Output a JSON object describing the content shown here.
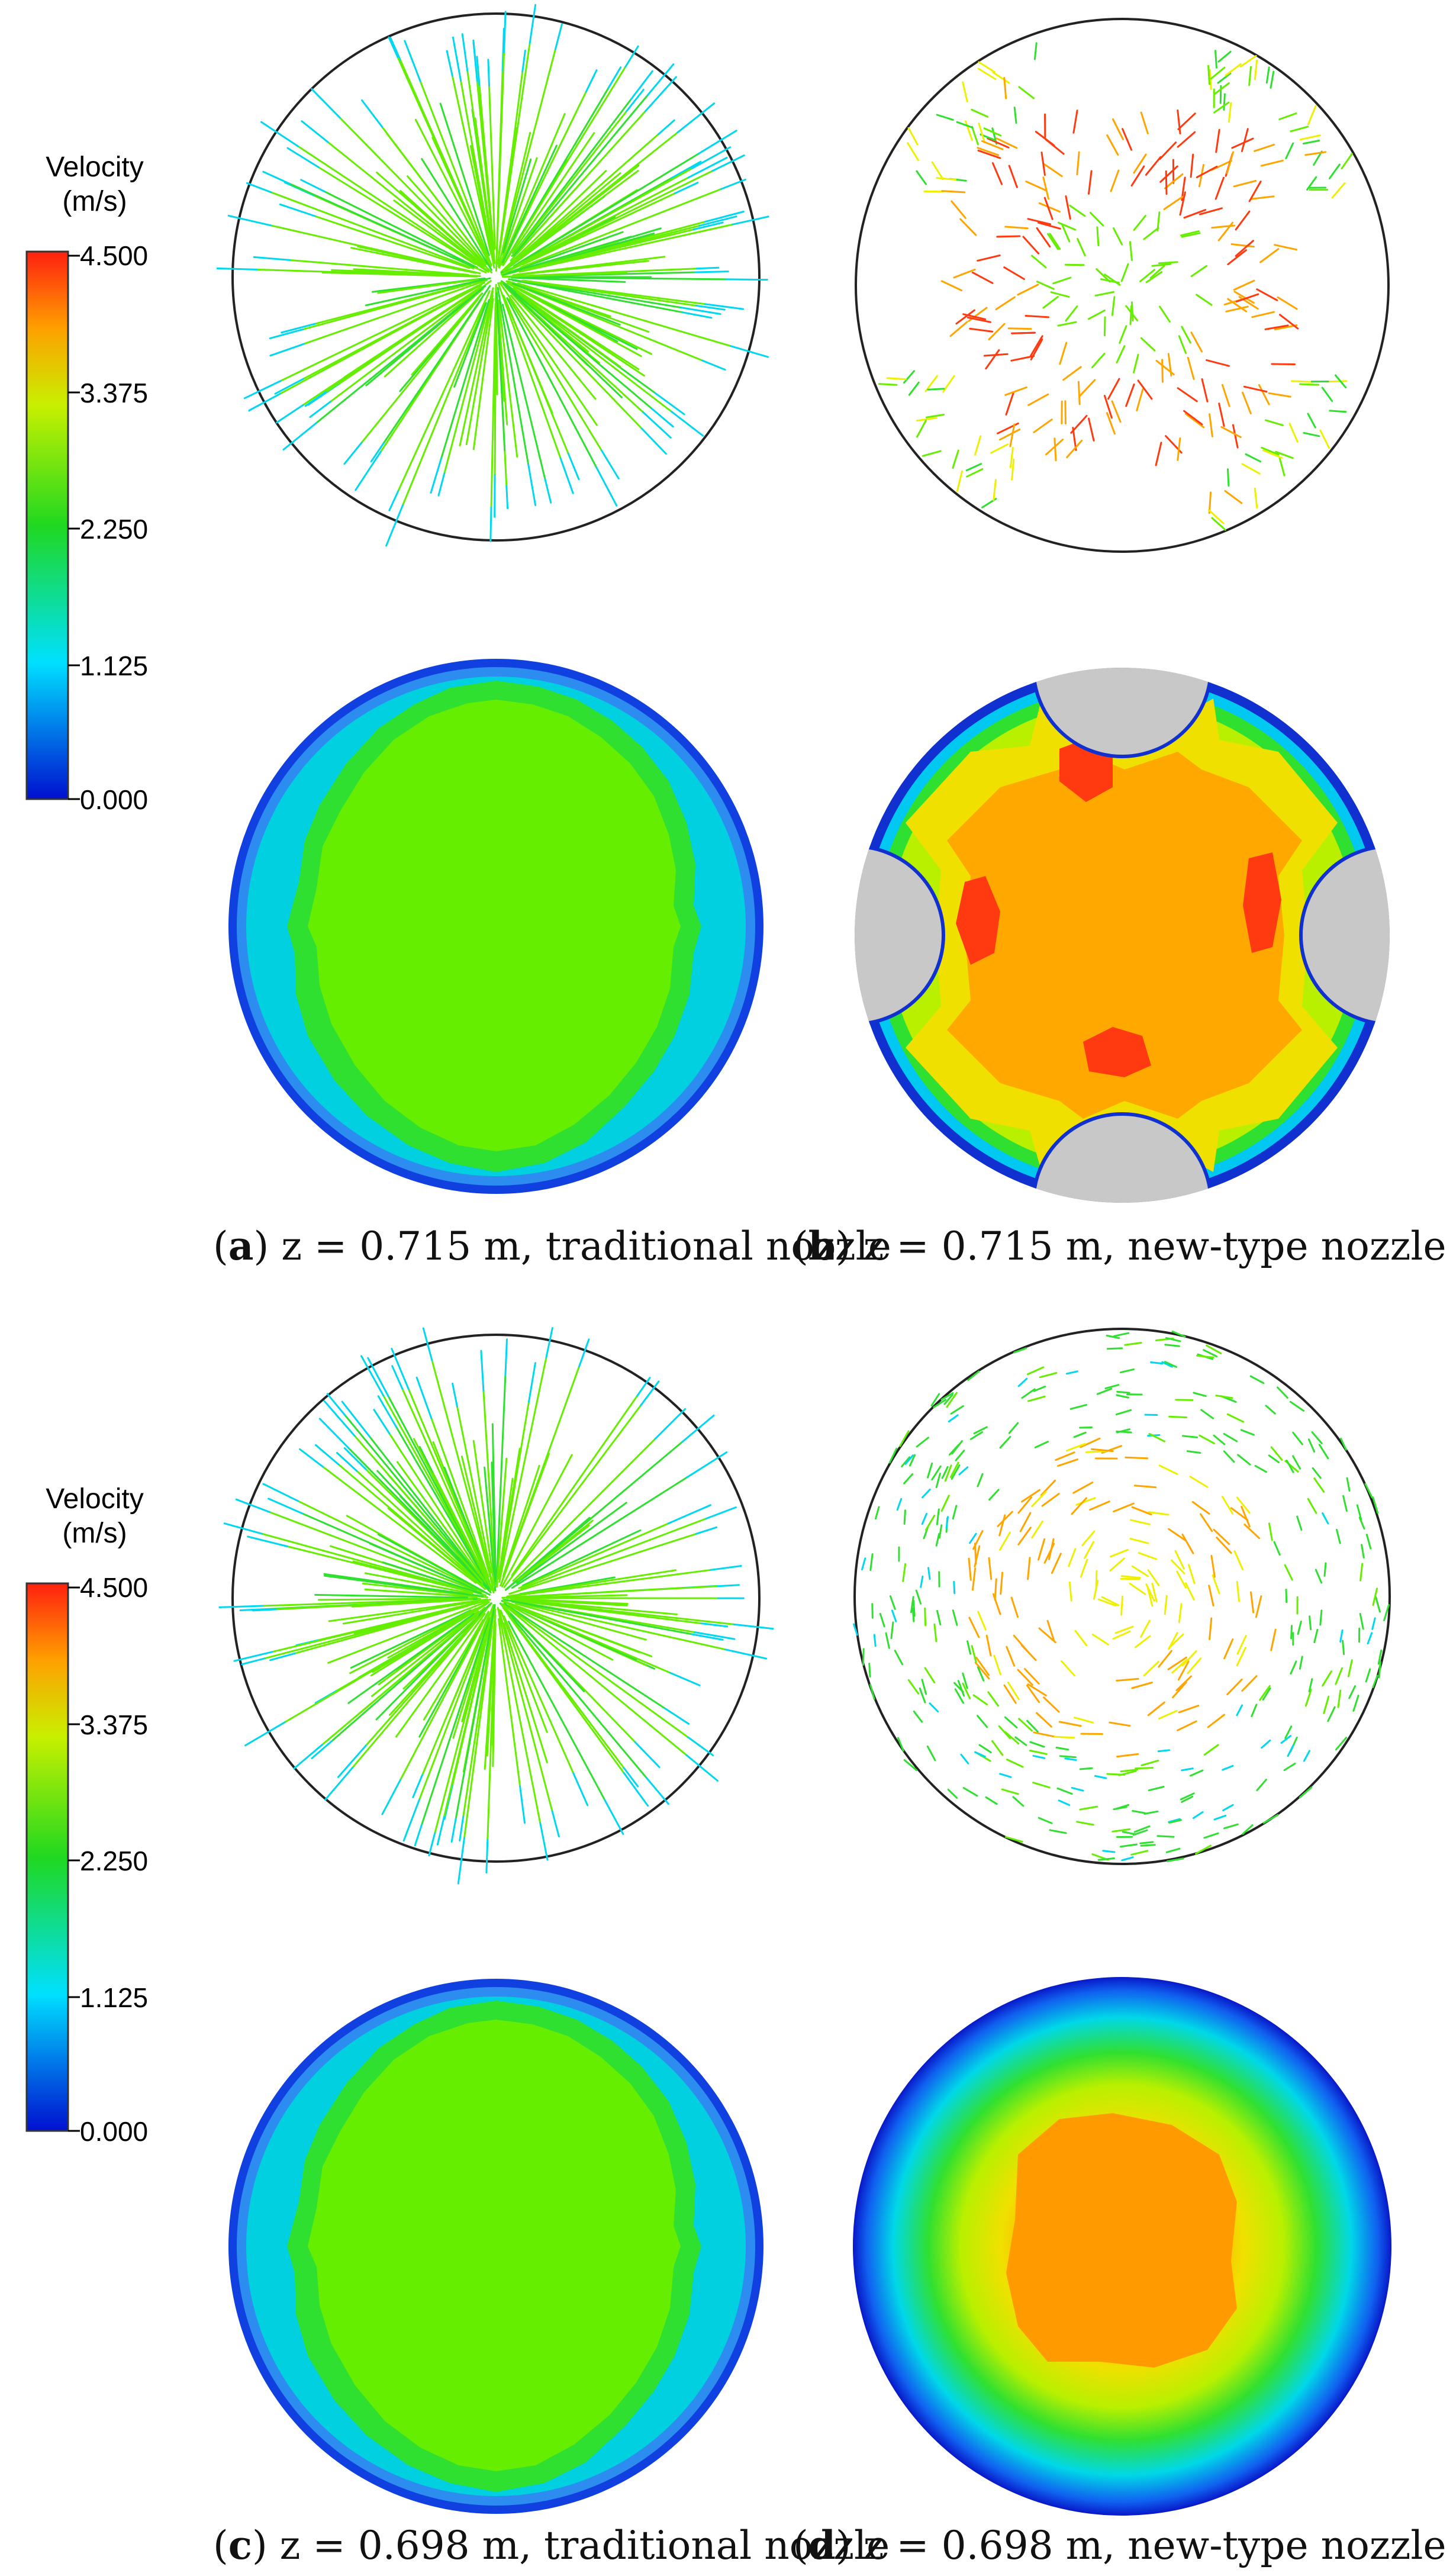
{
  "legend": {
    "title_line1": "Velocity",
    "title_line2": "(m/s)",
    "ticks": [
      "4.500",
      "3.375",
      "2.250",
      "1.125",
      "0.000"
    ],
    "range": [
      0,
      4.5
    ]
  },
  "colors": {
    "blue": "#1030e0",
    "cyan": "#00d8f0",
    "green": "#30e030",
    "lime": "#66ee00",
    "yellow": "#eef000",
    "orange": "#ffa500",
    "red": "#ff3a10",
    "gray": "#c8c8c8"
  },
  "panels": [
    {
      "label": "a",
      "caption": " z = 0.715 m, traditional nozzle",
      "pattern": "radial",
      "core_speed": 2.25
    },
    {
      "label": "b",
      "caption": " z = 0.715 m, new-type nozzle",
      "pattern": "cross",
      "core_speed": 3.9
    },
    {
      "label": "c",
      "caption": " z = 0.698 m, traditional nozzle",
      "pattern": "radial",
      "core_speed": 2.25
    },
    {
      "label": "d",
      "caption": " z = 0.698 m, new-type nozzle",
      "pattern": "swirl",
      "core_speed": 3.6
    }
  ]
}
